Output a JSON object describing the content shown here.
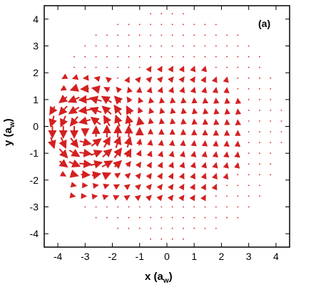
{
  "chart_data": {
    "type": "vector-field",
    "panel_label": "(a)",
    "xlabel": "x (a",
    "xlabel_sub": "w",
    "xlabel_end": ")",
    "ylabel": "y (a",
    "ylabel_sub": "w",
    "ylabel_end": ")",
    "xlim": [
      -4.5,
      4.5
    ],
    "ylim": [
      -4.5,
      4.5
    ],
    "x_ticks": [
      -4,
      -3,
      -2,
      -1,
      0,
      1,
      2,
      3,
      4
    ],
    "y_ticks": [
      -4,
      -3,
      -2,
      -1,
      0,
      1,
      2,
      3,
      4
    ],
    "x_tick_labels": [
      "-4",
      "-3",
      "-2",
      "-1",
      "0",
      "1",
      "2",
      "3",
      "4"
    ],
    "y_tick_labels": [
      "-4",
      "-3",
      "-2",
      "-1",
      "0",
      "1",
      "2",
      "3",
      "4"
    ],
    "arrow_color": "#d42020",
    "grid_spacing": 0.4,
    "field_extent_radius": 4.3,
    "vortex_core": [
      -2.9,
      -0.2
    ],
    "grid": false
  }
}
